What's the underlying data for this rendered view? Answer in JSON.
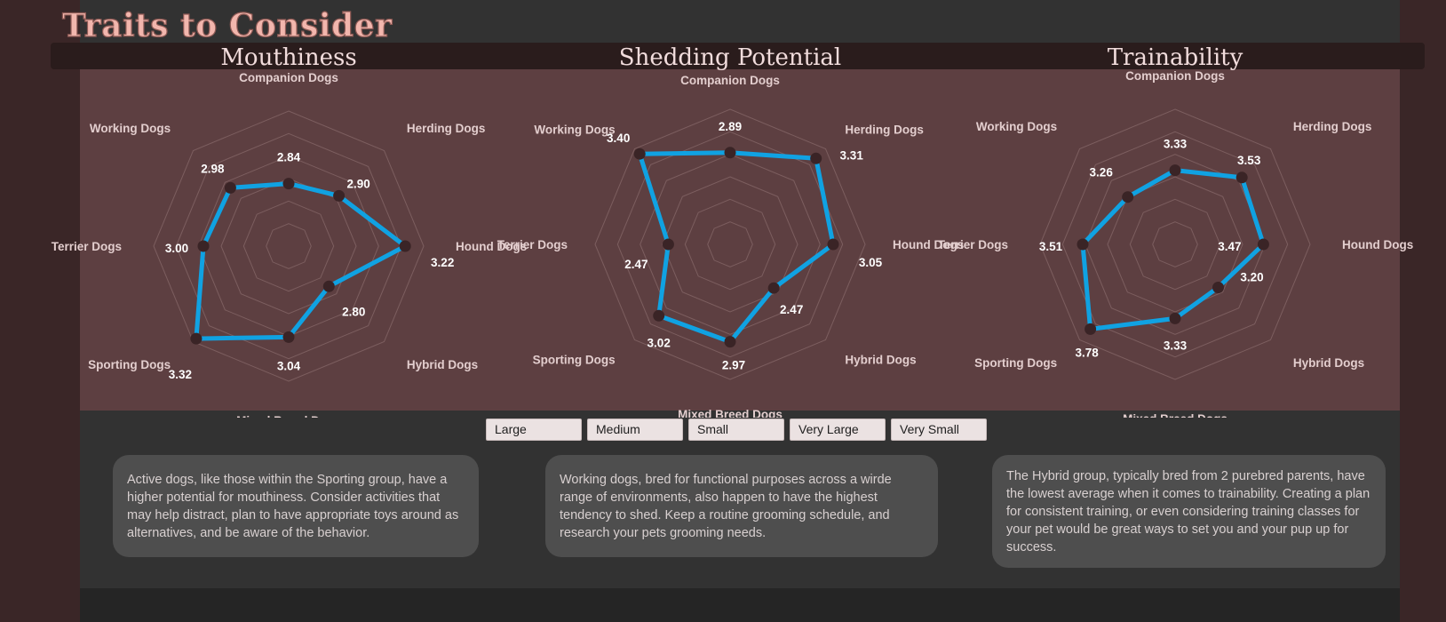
{
  "header": {
    "title": "Traits to Consider"
  },
  "categories": [
    "Companion Dogs",
    "Herding Dogs",
    "Hound Dogs",
    "Hybrid Dogs",
    "Mixed Breed Dogs",
    "Sporting Dogs",
    "Terrier Dogs",
    "Working Dogs"
  ],
  "chart_data": [
    {
      "type": "radar",
      "title": "Mouthiness",
      "categories": [
        "Companion Dogs",
        "Herding Dogs",
        "Hound Dogs",
        "Hybrid Dogs",
        "Mixed Breed Dogs",
        "Sporting Dogs",
        "Terrier Dogs",
        "Working Dogs"
      ],
      "series": [
        {
          "values": [
            2.84,
            2.9,
            3.22,
            2.8,
            3.04,
            3.32,
            3.0,
            2.98
          ]
        }
      ],
      "value_labels": [
        "2.84",
        "2.90",
        "3.22",
        "2.80",
        "3.04",
        "3.32",
        "3.00",
        "2.98"
      ],
      "rlim": [
        2.4,
        3.4
      ],
      "grid": true,
      "line_color": "#10a2e2",
      "marker_color": "#3a2426"
    },
    {
      "type": "radar",
      "title": "Shedding Potential",
      "categories": [
        "Companion Dogs",
        "Herding Dogs",
        "Hound Dogs",
        "Hybrid Dogs",
        "Mixed Breed Dogs",
        "Sporting Dogs",
        "Terrier Dogs",
        "Working Dogs"
      ],
      "series": [
        {
          "values": [
            2.89,
            3.31,
            3.05,
            2.47,
            2.97,
            3.02,
            2.47,
            3.4
          ]
        }
      ],
      "value_labels": [
        "2.89",
        "3.31",
        "3.05",
        "2.47",
        "2.97",
        "3.02",
        "2.47",
        "3.40"
      ],
      "rlim": [
        1.6,
        3.6
      ],
      "grid": true,
      "line_color": "#10a2e2",
      "marker_color": "#3a2426"
    },
    {
      "type": "radar",
      "title": "Trainability",
      "categories": [
        "Companion Dogs",
        "Herding Dogs",
        "Hound Dogs",
        "Hybrid Dogs",
        "Mixed Breed Dogs",
        "Sporting Dogs",
        "Terrier Dogs",
        "Working Dogs"
      ],
      "series": [
        {
          "values": [
            3.33,
            3.53,
            3.47,
            3.2,
            3.33,
            3.78,
            3.51,
            3.26
          ]
        }
      ],
      "value_labels": [
        "3.33",
        "3.53",
        "3.47",
        "3.20",
        "3.33",
        "3.78",
        "3.51",
        "3.26"
      ],
      "rlim": [
        2.6,
        4.0
      ],
      "grid": true,
      "line_color": "#10a2e2",
      "marker_color": "#3a2426"
    }
  ],
  "size_filters": [
    "Large",
    "Medium",
    "Small",
    "Very Large",
    "Very Small"
  ],
  "notes": [
    "Active dogs, like those within the Sporting group, have a higher potential for mouthiness. Consider activities that may help distract, plan to have appropriate toys around as alternatives, and be aware of the behavior.",
    "Working dogs, bred for functional purposes across a wirde range of environments, also happen to have the highest tendency to shed. Keep a routine grooming schedule, and research your pets grooming needs.",
    "The Hybrid group, typically bred from 2 purebred parents, have the lowest average when it comes to trainability. Creating a plan for consistent training, or even considering training classes for your pet would be great ways to set you and your pup up for success."
  ],
  "colors": {
    "panel": "#5d3f41",
    "accent": "#10a2e2",
    "marker": "#3a2426",
    "title": "#f2b6ad"
  }
}
